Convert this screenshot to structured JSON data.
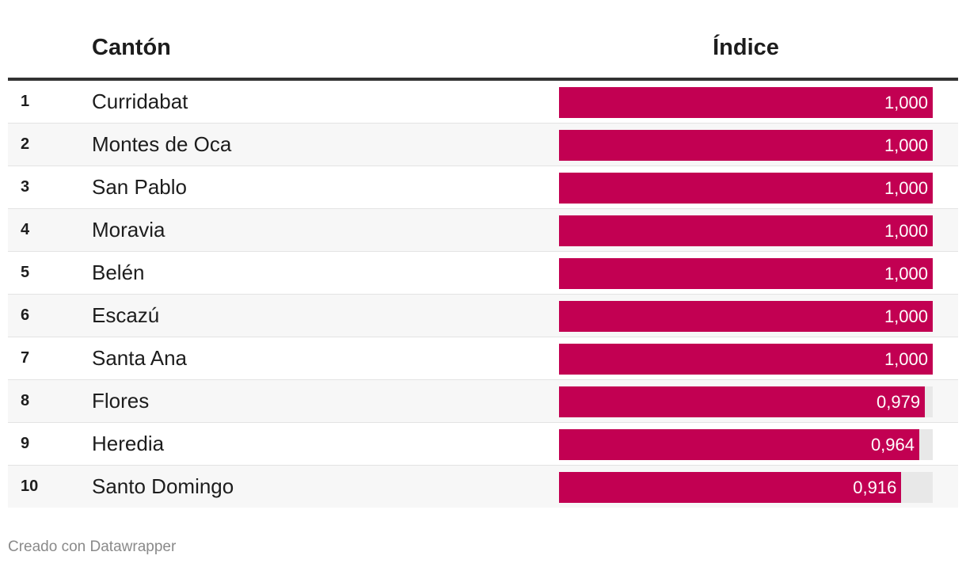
{
  "colors": {
    "bar": "#c20052",
    "bar_track": "#e8e8e8"
  },
  "chart_data": {
    "type": "table",
    "columns": [
      "",
      "Cantón",
      "Índice"
    ],
    "bar_max": 1.0,
    "rows": [
      {
        "rank": "1",
        "name": "Curridabat",
        "value": 1.0,
        "label": "1,000"
      },
      {
        "rank": "2",
        "name": "Montes de Oca",
        "value": 1.0,
        "label": "1,000"
      },
      {
        "rank": "3",
        "name": "San Pablo",
        "value": 1.0,
        "label": "1,000"
      },
      {
        "rank": "4",
        "name": "Moravia",
        "value": 1.0,
        "label": "1,000"
      },
      {
        "rank": "5",
        "name": "Belén",
        "value": 1.0,
        "label": "1,000"
      },
      {
        "rank": "6",
        "name": "Escazú",
        "value": 1.0,
        "label": "1,000"
      },
      {
        "rank": "7",
        "name": "Santa Ana",
        "value": 1.0,
        "label": "1,000"
      },
      {
        "rank": "8",
        "name": "Flores",
        "value": 0.979,
        "label": "0,979"
      },
      {
        "rank": "9",
        "name": "Heredia",
        "value": 0.964,
        "label": "0,964"
      },
      {
        "rank": "10",
        "name": "Santo Domingo",
        "value": 0.916,
        "label": "0,916"
      }
    ]
  },
  "footer": {
    "credit": "Creado con Datawrapper"
  }
}
